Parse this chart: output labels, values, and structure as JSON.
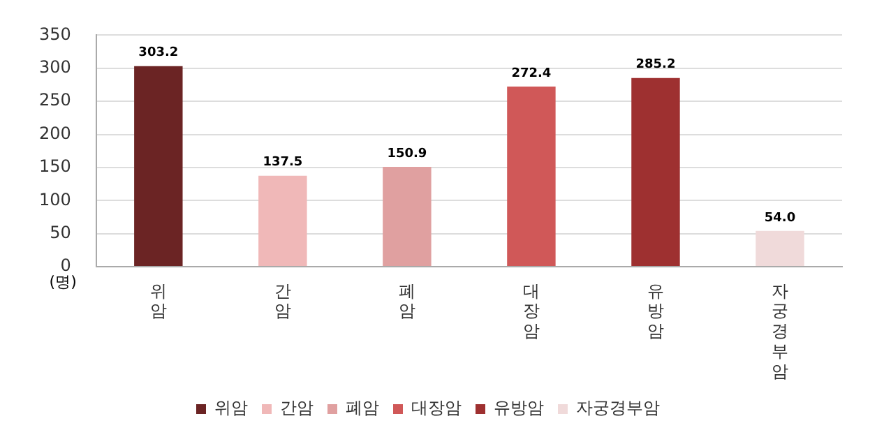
{
  "chart_data": {
    "type": "bar",
    "ylabel": "(명)",
    "categories": [
      "위암",
      "간암",
      "폐암",
      "대장암",
      "유방암",
      "자궁경부암"
    ],
    "series": [
      {
        "name": "위암",
        "color": "#6b2424",
        "values": [
          303.2,
          null,
          null,
          null,
          null,
          null
        ],
        "value_labels": [
          "303.2",
          null,
          null,
          null,
          null,
          null
        ]
      },
      {
        "name": "간암",
        "color": "#f0b8b8",
        "values": [
          null,
          137.5,
          null,
          null,
          null,
          null
        ],
        "value_labels": [
          null,
          "137.5",
          null,
          null,
          null,
          null
        ]
      },
      {
        "name": "폐암",
        "color": "#e0a0a0",
        "values": [
          null,
          null,
          150.9,
          null,
          null,
          null
        ],
        "value_labels": [
          null,
          null,
          "150.9",
          null,
          null,
          null
        ]
      },
      {
        "name": "대장암",
        "color": "#d05858",
        "values": [
          null,
          null,
          null,
          272.4,
          null,
          null
        ],
        "value_labels": [
          null,
          null,
          null,
          "272.4",
          null,
          null
        ]
      },
      {
        "name": "유방암",
        "color": "#9e3030",
        "values": [
          null,
          null,
          null,
          null,
          285.2,
          null
        ],
        "value_labels": [
          null,
          null,
          null,
          null,
          "285.2",
          null
        ]
      },
      {
        "name": "자궁경부암",
        "color": "#f0dada",
        "values": [
          null,
          null,
          null,
          null,
          null,
          54.0
        ],
        "value_labels": [
          null,
          null,
          null,
          null,
          null,
          "54.0"
        ]
      }
    ],
    "ylim": [
      0,
      350
    ],
    "yticks": [
      0,
      50,
      100,
      150,
      200,
      250,
      300,
      350
    ],
    "grid": "y",
    "legend": "bottom"
  }
}
